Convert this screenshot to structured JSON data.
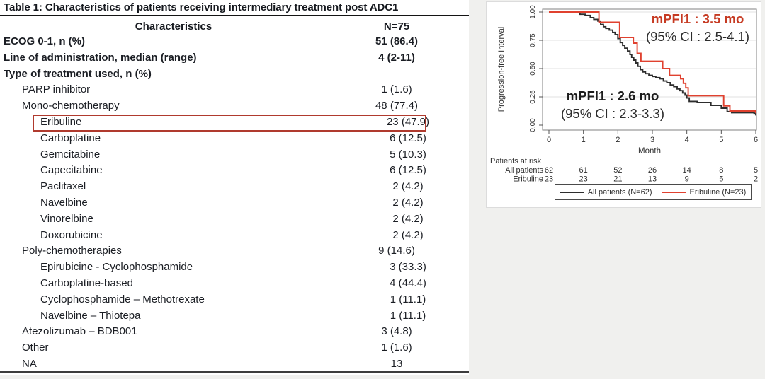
{
  "page": {
    "background": "#f0f0ee"
  },
  "table": {
    "title": "Table 1: Characteristics of patients receiving intermediary treatment post ADC1",
    "header": {
      "characteristics": "Characteristics",
      "n": "N=75"
    },
    "highlight_color": "#b03a2e",
    "rows": [
      {
        "label": "ECOG 0-1, n (%)",
        "value": "51 (86.4)",
        "indent": 0,
        "bold": true
      },
      {
        "label": "Line of administration, median (range)",
        "value": "4 (2-11)",
        "indent": 0,
        "bold": true
      },
      {
        "label": "Type of treatment used, n (%)",
        "value": "",
        "indent": 0,
        "bold": true
      },
      {
        "label": "PARP inhibitor",
        "value": "1 (1.6)",
        "indent": 1,
        "bold": false
      },
      {
        "label": "Mono-chemotherapy",
        "value": "48 (77.4)",
        "indent": 1,
        "bold": false
      },
      {
        "label": "Eribuline",
        "value": "23 (47.9)",
        "indent": 2,
        "bold": false,
        "highlight": true
      },
      {
        "label": "Carboplatine",
        "value": "6 (12.5)",
        "indent": 2,
        "bold": false
      },
      {
        "label": "Gemcitabine",
        "value": "5 (10.3)",
        "indent": 2,
        "bold": false
      },
      {
        "label": "Capecitabine",
        "value": "6 (12.5)",
        "indent": 2,
        "bold": false
      },
      {
        "label": "Paclitaxel",
        "value": "2 (4.2)",
        "indent": 2,
        "bold": false
      },
      {
        "label": "Navelbine",
        "value": "2 (4.2)",
        "indent": 2,
        "bold": false
      },
      {
        "label": "Vinorelbine",
        "value": "2 (4.2)",
        "indent": 2,
        "bold": false
      },
      {
        "label": "Doxorubicine",
        "value": "2 (4.2)",
        "indent": 2,
        "bold": false
      },
      {
        "label": "Poly-chemotherapies",
        "value": "9 (14.6)",
        "indent": 1,
        "bold": false
      },
      {
        "label": "Epirubicine - Cyclophosphamide",
        "value": "3 (33.3)",
        "indent": 2,
        "bold": false
      },
      {
        "label": "Carboplatine-based",
        "value": "4 (44.4)",
        "indent": 2,
        "bold": false
      },
      {
        "label": "Cyclophosphamide – Methotrexate",
        "value": "1 (11.1)",
        "indent": 2,
        "bold": false
      },
      {
        "label": "Navelbine – Thiotepa",
        "value": "1 (11.1)",
        "indent": 2,
        "bold": false
      },
      {
        "label": "Atezolizumab – BDB001",
        "value": "3 (4.8)",
        "indent": 1,
        "bold": false
      },
      {
        "label": "Other",
        "value": "1 (1.6)",
        "indent": 1,
        "bold": false
      },
      {
        "label": "NA",
        "value": "13",
        "indent": 1,
        "bold": false
      }
    ]
  },
  "chart_data": {
    "type": "line",
    "subtype": "kaplan-meier-step",
    "xlabel": "Month",
    "ylabel": "Progression-free Interval",
    "xlim": [
      0,
      6
    ],
    "ylim": [
      0,
      1
    ],
    "xticks": [
      "0",
      "1",
      "2",
      "3",
      "4",
      "5",
      "6"
    ],
    "yticks": [
      "0.00",
      "0.25",
      "0.50",
      "0.75",
      "1.00"
    ],
    "grid": "horizontal",
    "legend_position": "bottom",
    "series": [
      {
        "name": "All patients (N=62)",
        "color": "#2d2d2d",
        "steps": [
          [
            0,
            1.0
          ],
          [
            0.9,
            0.98
          ],
          [
            1.05,
            0.97
          ],
          [
            1.2,
            0.95
          ],
          [
            1.3,
            0.935
          ],
          [
            1.42,
            0.92
          ],
          [
            1.5,
            0.89
          ],
          [
            1.58,
            0.87
          ],
          [
            1.65,
            0.855
          ],
          [
            1.75,
            0.84
          ],
          [
            1.85,
            0.82
          ],
          [
            1.92,
            0.8
          ],
          [
            2.0,
            0.765
          ],
          [
            2.07,
            0.73
          ],
          [
            2.14,
            0.705
          ],
          [
            2.2,
            0.68
          ],
          [
            2.28,
            0.655
          ],
          [
            2.35,
            0.625
          ],
          [
            2.4,
            0.6
          ],
          [
            2.46,
            0.575
          ],
          [
            2.52,
            0.55
          ],
          [
            2.58,
            0.52
          ],
          [
            2.65,
            0.49
          ],
          [
            2.72,
            0.47
          ],
          [
            2.8,
            0.455
          ],
          [
            2.9,
            0.44
          ],
          [
            3.0,
            0.43
          ],
          [
            3.1,
            0.42
          ],
          [
            3.22,
            0.41
          ],
          [
            3.32,
            0.39
          ],
          [
            3.42,
            0.375
          ],
          [
            3.52,
            0.355
          ],
          [
            3.62,
            0.34
          ],
          [
            3.72,
            0.32
          ],
          [
            3.8,
            0.305
          ],
          [
            3.88,
            0.285
          ],
          [
            3.95,
            0.265
          ],
          [
            4.0,
            0.24
          ],
          [
            4.07,
            0.21
          ],
          [
            4.3,
            0.2
          ],
          [
            4.7,
            0.175
          ],
          [
            5.0,
            0.15
          ],
          [
            5.17,
            0.12
          ],
          [
            5.3,
            0.11
          ],
          [
            5.95,
            0.105
          ],
          [
            6.0,
            0.085
          ]
        ]
      },
      {
        "name": "Eribuline (N=23)",
        "color": "#e0412f",
        "steps": [
          [
            0,
            1.0
          ],
          [
            1.45,
            0.91
          ],
          [
            2.05,
            0.775
          ],
          [
            2.45,
            0.725
          ],
          [
            2.56,
            0.635
          ],
          [
            2.67,
            0.565
          ],
          [
            3.3,
            0.5
          ],
          [
            3.5,
            0.44
          ],
          [
            3.82,
            0.41
          ],
          [
            3.9,
            0.37
          ],
          [
            3.97,
            0.33
          ],
          [
            4.04,
            0.26
          ],
          [
            5.07,
            0.17
          ],
          [
            5.25,
            0.125
          ],
          [
            6.0,
            0.105
          ]
        ]
      }
    ],
    "annotations": [
      {
        "id": "eribuline-mpfi",
        "line1": "mPFI1 : 3.5 mo",
        "line2": "(95% CI : 2.5-4.1)",
        "color": "#c63a22"
      },
      {
        "id": "all-patients-mpfi",
        "line1": "mPFI1 : 2.6 mo",
        "line2": "(95% CI : 2.3-3.3)",
        "color": "#1c1c1c"
      }
    ],
    "risk_table": {
      "title": "Patients at risk",
      "time_points": [
        0,
        1,
        2,
        3,
        4,
        5,
        6
      ],
      "rows": [
        {
          "label": "All patients",
          "counts": [
            "62",
            "61",
            "52",
            "26",
            "14",
            "8",
            "5"
          ]
        },
        {
          "label": "Eribuline",
          "counts": [
            "23",
            "23",
            "21",
            "13",
            "9",
            "5",
            "2"
          ]
        }
      ]
    },
    "legend": [
      {
        "label": "All patients (N=62)",
        "color": "#2d2d2d"
      },
      {
        "label": "Eribuline (N=23)",
        "color": "#e0412f"
      }
    ]
  }
}
